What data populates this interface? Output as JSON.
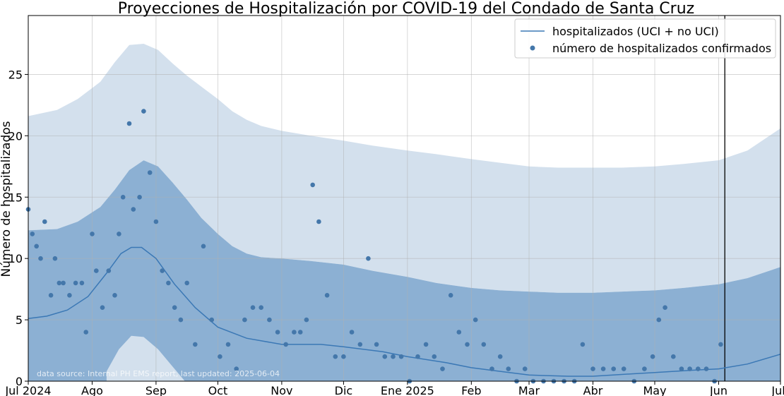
{
  "chart_data": {
    "type": "line",
    "title": "Proyecciones de Hospitalización por COVID-19 del Condado de Santa Cruz",
    "ylabel": "Número de hospitalizados",
    "xlabel": "",
    "xlim": [
      "2024-07-01",
      "2025-07-01"
    ],
    "ylim": [
      0,
      29.8
    ],
    "grid": true,
    "legend_position": "top-right",
    "source_note": "data source: Internal PH EMS report, last updated: 2025-06-04",
    "x_ticks": [
      {
        "date": "2024-07-01",
        "label": "Jul 2024"
      },
      {
        "date": "2024-08-01",
        "label": "Ago"
      },
      {
        "date": "2024-09-01",
        "label": "Sep"
      },
      {
        "date": "2024-10-01",
        "label": "Oct"
      },
      {
        "date": "2024-11-01",
        "label": "Nov"
      },
      {
        "date": "2024-12-01",
        "label": "Dic"
      },
      {
        "date": "2025-01-01",
        "label": "Ene 2025"
      },
      {
        "date": "2025-02-01",
        "label": "Feb"
      },
      {
        "date": "2025-03-01",
        "label": "Mar"
      },
      {
        "date": "2025-04-01",
        "label": "Abr"
      },
      {
        "date": "2025-05-01",
        "label": "May"
      },
      {
        "date": "2025-06-01",
        "label": "Jun"
      },
      {
        "date": "2025-07-01",
        "label": "Jul"
      }
    ],
    "y_ticks": [
      {
        "value": 0,
        "label": "0"
      },
      {
        "value": 5,
        "label": "5"
      },
      {
        "value": 10,
        "label": "10"
      },
      {
        "value": 15,
        "label": "15"
      },
      {
        "value": 20,
        "label": "20"
      },
      {
        "value": 25,
        "label": "25"
      }
    ],
    "vertical_marker": {
      "date": "2025-06-04",
      "color": "#000000"
    },
    "colors": {
      "line": "#3b78b5",
      "points": "#4477aa",
      "inner_band": "#8cb0d3",
      "outer_band": "#d3e0ed"
    },
    "bands": {
      "x": [
        "2024-07-01",
        "2024-07-15",
        "2024-07-25",
        "2024-08-05",
        "2024-08-12",
        "2024-08-19",
        "2024-08-26",
        "2024-09-02",
        "2024-09-09",
        "2024-09-16",
        "2024-09-23",
        "2024-10-01",
        "2024-10-08",
        "2024-10-15",
        "2024-10-22",
        "2024-11-01",
        "2024-11-15",
        "2024-12-01",
        "2024-12-15",
        "2025-01-01",
        "2025-01-15",
        "2025-02-01",
        "2025-02-15",
        "2025-03-01",
        "2025-03-15",
        "2025-04-01",
        "2025-04-15",
        "2025-05-01",
        "2025-05-15",
        "2025-06-01",
        "2025-06-15",
        "2025-07-01"
      ],
      "outer_upper": [
        21.6,
        22.1,
        23.0,
        24.4,
        26.0,
        27.4,
        27.5,
        27.0,
        25.9,
        24.9,
        24.0,
        23.0,
        22.0,
        21.3,
        20.8,
        20.4,
        20.0,
        19.6,
        19.2,
        18.8,
        18.5,
        18.1,
        17.8,
        17.5,
        17.4,
        17.4,
        17.4,
        17.5,
        17.7,
        18.0,
        18.8,
        20.6
      ],
      "inner_upper": [
        12.3,
        12.4,
        13.0,
        14.2,
        15.6,
        17.2,
        18.0,
        17.5,
        16.2,
        14.8,
        13.3,
        12.0,
        11.0,
        10.4,
        10.1,
        10.0,
        9.8,
        9.5,
        9.0,
        8.5,
        8.0,
        7.6,
        7.4,
        7.3,
        7.2,
        7.2,
        7.3,
        7.4,
        7.6,
        7.9,
        8.4,
        9.3
      ],
      "inner_lower": [
        0,
        0,
        0,
        0,
        0,
        0,
        0,
        0,
        0,
        0,
        0,
        0,
        0,
        0,
        0,
        0,
        0,
        0,
        0,
        0,
        0,
        0,
        0,
        0,
        0,
        0,
        0,
        0,
        0,
        0,
        0,
        0
      ],
      "small_band_x": [
        "2024-08-08",
        "2024-08-14",
        "2024-08-20",
        "2024-08-26",
        "2024-09-02",
        "2024-09-09",
        "2024-09-15"
      ],
      "small_band_upper": [
        0.8,
        2.6,
        3.7,
        3.6,
        2.6,
        1.2,
        0
      ]
    },
    "series": [
      {
        "name": "hospitalizados (UCI + no UCI)",
        "type": "line",
        "x": [
          "2024-07-01",
          "2024-07-10",
          "2024-07-20",
          "2024-07-30",
          "2024-08-08",
          "2024-08-15",
          "2024-08-20",
          "2024-08-25",
          "2024-09-01",
          "2024-09-10",
          "2024-09-20",
          "2024-10-01",
          "2024-10-15",
          "2024-11-01",
          "2024-11-20",
          "2024-12-01",
          "2024-12-20",
          "2025-01-01",
          "2025-01-20",
          "2025-02-01",
          "2025-02-15",
          "2025-03-01",
          "2025-03-20",
          "2025-04-01",
          "2025-04-20",
          "2025-05-01",
          "2025-05-20",
          "2025-06-01",
          "2025-06-15",
          "2025-07-01"
        ],
        "y": [
          5.1,
          5.3,
          5.8,
          6.9,
          8.8,
          10.4,
          10.9,
          10.9,
          10.0,
          7.9,
          6.0,
          4.4,
          3.5,
          3.0,
          3.0,
          2.8,
          2.4,
          2.0,
          1.5,
          1.1,
          0.8,
          0.5,
          0.4,
          0.4,
          0.6,
          0.7,
          0.9,
          1.0,
          1.4,
          2.2
        ]
      },
      {
        "name": "número de hospitalizados confirmados",
        "type": "scatter",
        "x": [
          "2024-07-01",
          "2024-07-03",
          "2024-07-05",
          "2024-07-07",
          "2024-07-09",
          "2024-07-12",
          "2024-07-14",
          "2024-07-16",
          "2024-07-18",
          "2024-07-21",
          "2024-07-24",
          "2024-07-27",
          "2024-07-29",
          "2024-08-01",
          "2024-08-03",
          "2024-08-06",
          "2024-08-09",
          "2024-08-12",
          "2024-08-14",
          "2024-08-16",
          "2024-08-19",
          "2024-08-21",
          "2024-08-24",
          "2024-08-26",
          "2024-08-29",
          "2024-09-01",
          "2024-09-04",
          "2024-09-07",
          "2024-09-10",
          "2024-09-13",
          "2024-09-16",
          "2024-09-20",
          "2024-09-24",
          "2024-09-28",
          "2024-10-02",
          "2024-10-06",
          "2024-10-10",
          "2024-10-14",
          "2024-10-18",
          "2024-10-22",
          "2024-10-26",
          "2024-10-30",
          "2024-11-03",
          "2024-11-07",
          "2024-11-10",
          "2024-11-13",
          "2024-11-16",
          "2024-11-19",
          "2024-11-23",
          "2024-11-27",
          "2024-12-01",
          "2024-12-05",
          "2024-12-09",
          "2024-12-13",
          "2024-12-17",
          "2024-12-21",
          "2024-12-25",
          "2024-12-29",
          "2025-01-02",
          "2025-01-06",
          "2025-01-10",
          "2025-01-14",
          "2025-01-18",
          "2025-01-22",
          "2025-01-26",
          "2025-01-30",
          "2025-02-03",
          "2025-02-07",
          "2025-02-11",
          "2025-02-15",
          "2025-02-19",
          "2025-02-23",
          "2025-02-27",
          "2025-03-03",
          "2025-03-08",
          "2025-03-13",
          "2025-03-18",
          "2025-03-23",
          "2025-03-27",
          "2025-04-01",
          "2025-04-06",
          "2025-04-11",
          "2025-04-16",
          "2025-04-21",
          "2025-04-26",
          "2025-04-30",
          "2025-05-03",
          "2025-05-06",
          "2025-05-10",
          "2025-05-14",
          "2025-05-18",
          "2025-05-22",
          "2025-05-26",
          "2025-05-30",
          "2025-06-02"
        ],
        "y": [
          14,
          12,
          11,
          10,
          13,
          7,
          10,
          8,
          8,
          7,
          8,
          8,
          4,
          12,
          9,
          6,
          9,
          7,
          12,
          15,
          21,
          14,
          15,
          22,
          17,
          13,
          9,
          8,
          6,
          5,
          8,
          3,
          11,
          5,
          2,
          3,
          1,
          5,
          6,
          6,
          5,
          4,
          3,
          4,
          4,
          5,
          16,
          13,
          7,
          2,
          2,
          4,
          3,
          10,
          3,
          2,
          2,
          2,
          0,
          2,
          3,
          2,
          1,
          7,
          4,
          3,
          5,
          3,
          1,
          2,
          1,
          0,
          1,
          0,
          0,
          0,
          0,
          0,
          3,
          1,
          1,
          1,
          1,
          0,
          1,
          2,
          5,
          6,
          2,
          1,
          1,
          1,
          1,
          0,
          3
        ]
      }
    ]
  }
}
